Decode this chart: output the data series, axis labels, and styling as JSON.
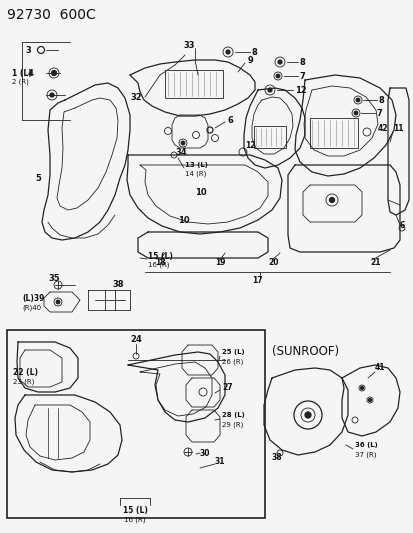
{
  "title": "92730  600C",
  "background_color": "#f5f5f5",
  "fig_width": 4.14,
  "fig_height": 5.33,
  "dpi": 100,
  "sunroof_label": "(SUNROOF)",
  "footer_label_1": "15 (L)",
  "footer_label_2": "16 (R)",
  "line_color": "#222222",
  "label_color": "#111111"
}
